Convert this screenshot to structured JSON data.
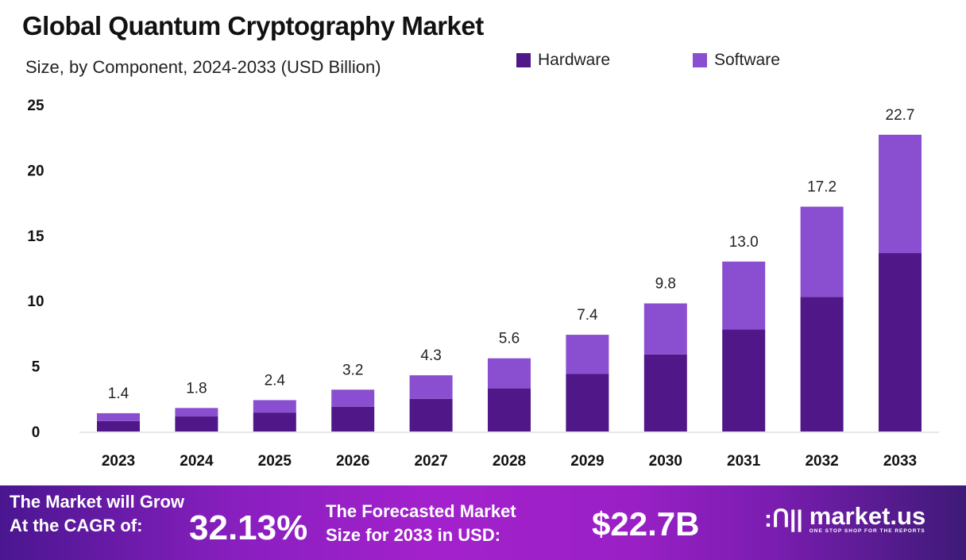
{
  "chart_data": {
    "type": "stacked-bar",
    "title": "Global Quantum Cryptography Market",
    "subtitle": "Size, by Component, 2024-2033 (USD Billion)",
    "categories": [
      "2023",
      "2024",
      "2025",
      "2026",
      "2027",
      "2028",
      "2029",
      "2030",
      "2031",
      "2032",
      "2033"
    ],
    "series": [
      {
        "name": "Hardware",
        "color": "#4f1787",
        "values": [
          0.8,
          1.15,
          1.45,
          1.9,
          2.5,
          3.3,
          4.4,
          5.9,
          7.8,
          10.3,
          13.65
        ]
      },
      {
        "name": "Software",
        "color": "#8a4fd0",
        "values": [
          0.6,
          0.65,
          0.95,
          1.3,
          1.8,
          2.3,
          3.0,
          3.9,
          5.2,
          6.9,
          9.05
        ]
      }
    ],
    "totals": [
      "1.4",
      "1.8",
      "2.4",
      "3.2",
      "4.3",
      "5.6",
      "7.4",
      "9.8",
      "13.0",
      "17.2",
      "22.7"
    ],
    "ylim": [
      0,
      25
    ],
    "yticks": [
      "0",
      "5",
      "10",
      "15",
      "20",
      "25"
    ],
    "grid": false,
    "legend": "top-right"
  },
  "footer": {
    "cagr_label_1": "The Market will Grow",
    "cagr_label_2": "At the CAGR of:",
    "cagr_value": "32.13%",
    "forecast_label_1": "The Forecasted Market",
    "forecast_label_2": "Size for 2033 in USD:",
    "forecast_value": "$22.7B",
    "logo_text": "market.us",
    "logo_tagline": "ONE STOP SHOP FOR THE REPORTS"
  }
}
